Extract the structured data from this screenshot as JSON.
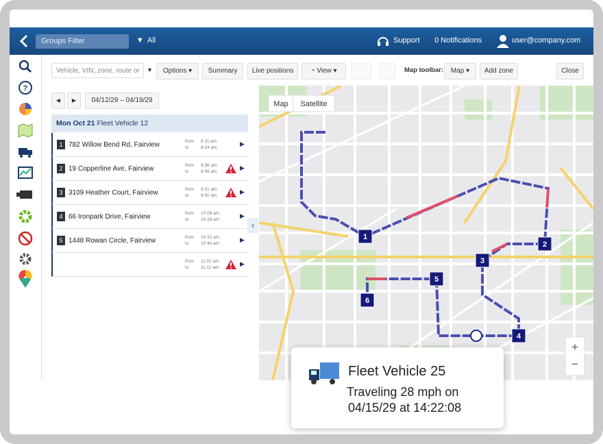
{
  "topbar": {
    "groups_filter": "Groups Filter",
    "filter_value": "All",
    "support": "Support",
    "notifications": "0 Notifications",
    "user": "user@company.com"
  },
  "toolbar": {
    "search_placeholder": "Vehicle, VIN, zone, route or",
    "options": "Options",
    "summary": "Summary",
    "live_positions": "Live positions",
    "view": "View",
    "map_toolbar": "Map toolbar:",
    "map": "Map",
    "add_zone": "Add zone",
    "close": "Close"
  },
  "panel": {
    "date_range": "04/12/29 – 04/19/29",
    "header_date": "Mon Oct 21",
    "header_vehicle": "Fleet Vehicle 12",
    "from_label": "from",
    "to_label": "to",
    "stops": [
      {
        "number": "1",
        "address": "782 Willow Bend Rd, Fairview",
        "from": "8:11 am",
        "to": "8:24 am",
        "warning": false
      },
      {
        "number": "2",
        "address": "19 Copperline Ave, Fairview",
        "from": "8:36 am",
        "to": "8:38 am",
        "warning": true
      },
      {
        "number": "3",
        "address": "3109 Heather Court, Fairview",
        "from": "9:21 am",
        "to": "9:30 am",
        "warning": true
      },
      {
        "number": "4",
        "address": "66 Ironpark Drive, Fairview",
        "from": "10:08 am",
        "to": "10:18 am",
        "warning": false
      },
      {
        "number": "5",
        "address": "1448 Rowan Circle, Fairview",
        "from": "10:32 am",
        "to": "10:44 am",
        "warning": false
      },
      {
        "from": "11:01 am",
        "to": "11:12 am",
        "warning": true
      }
    ]
  },
  "map": {
    "map_tab": "Map",
    "satellite_tab": "Satellite",
    "markers": [
      "1",
      "2",
      "3",
      "4",
      "5",
      "6"
    ],
    "zoom_in": "+",
    "zoom_out": "−"
  },
  "popup": {
    "vehicle": "Fleet Vehicle 25",
    "status": "Traveling 28 mph on",
    "timestamp": "04/15/29 at 14:22:08"
  }
}
